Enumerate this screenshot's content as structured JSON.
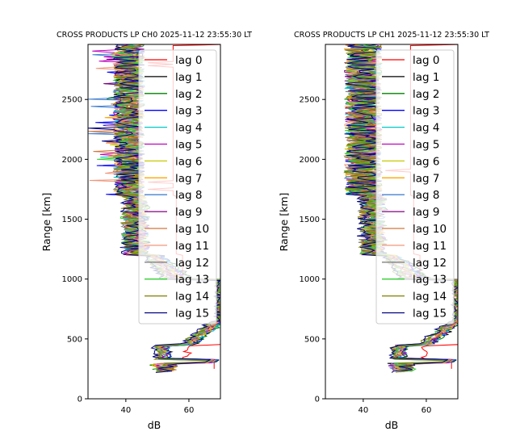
{
  "chart_data": [
    {
      "type": "line",
      "title": "CROSS PRODUCTS LP CH0 2025-11-12 23:55:30 LT",
      "xlabel": "dB",
      "ylabel": "Range [km]",
      "xlim": [
        28,
        70
      ],
      "ylim": [
        0,
        2960
      ],
      "xticks": [
        40,
        60
      ],
      "xtick_labels": [
        "40",
        "60"
      ],
      "yticks": [
        0,
        500,
        1000,
        1500,
        2000,
        2500
      ],
      "ytick_labels": [
        "0",
        "500",
        "1000",
        "1500",
        "2000",
        "2500"
      ],
      "legend_position": "upper-right",
      "variant": 0
    },
    {
      "type": "line",
      "title": "CROSS PRODUCTS LP CH1 2025-11-12 23:55:30 LT",
      "xlabel": "dB",
      "ylabel": "Range [km]",
      "xlim": [
        28,
        70
      ],
      "ylim": [
        0,
        2960
      ],
      "xticks": [
        40,
        60
      ],
      "xtick_labels": [
        "40",
        "60"
      ],
      "yticks": [
        0,
        500,
        1000,
        1500,
        2000,
        2500
      ],
      "ytick_labels": [
        "0",
        "500",
        "1000",
        "1500",
        "2000",
        "2500"
      ],
      "legend_position": "upper-right",
      "variant": 1
    }
  ],
  "series": [
    {
      "name": "lag 0",
      "color": "#ff0000"
    },
    {
      "name": "lag 1",
      "color": "#000000"
    },
    {
      "name": "lag 2",
      "color": "#008000"
    },
    {
      "name": "lag 3",
      "color": "#0000ff"
    },
    {
      "name": "lag 4",
      "color": "#00c8c8"
    },
    {
      "name": "lag 5",
      "color": "#c000c0"
    },
    {
      "name": "lag 6",
      "color": "#c8c800"
    },
    {
      "name": "lag 7",
      "color": "#ffa500"
    },
    {
      "name": "lag 8",
      "color": "#4682d2"
    },
    {
      "name": "lag 9",
      "color": "#800080"
    },
    {
      "name": "lag 10",
      "color": "#d2783c"
    },
    {
      "name": "lag 11",
      "color": "#f0967a"
    },
    {
      "name": "lag 12",
      "color": "#808080"
    },
    {
      "name": "lag 13",
      "color": "#32cd32"
    },
    {
      "name": "lag 14",
      "color": "#808000"
    },
    {
      "name": "lag 15",
      "color": "#000080"
    }
  ]
}
